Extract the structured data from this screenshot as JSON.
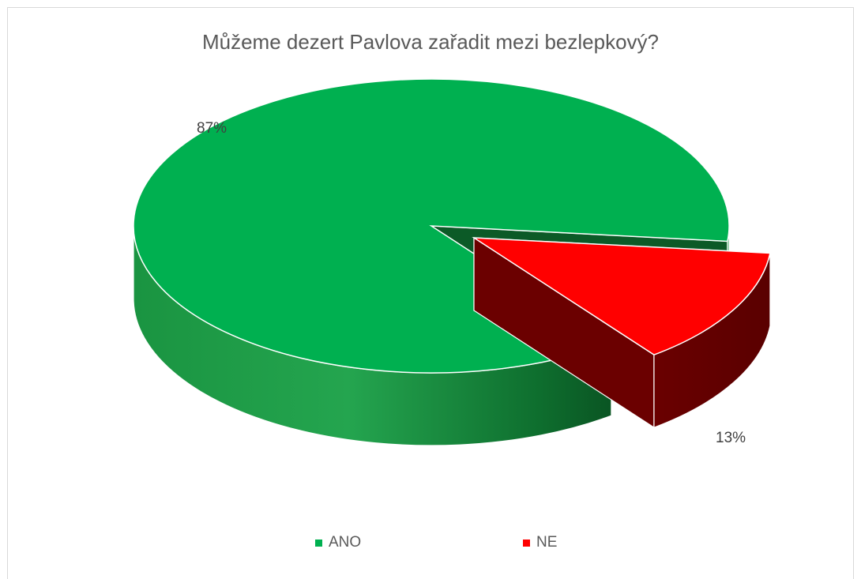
{
  "chart_data": {
    "type": "pie",
    "title": "Můžeme dezert Pavlova zařadit mezi bezlepkový?",
    "categories": [
      "ANO",
      "NE"
    ],
    "values": [
      87,
      13
    ],
    "labels": [
      "87%",
      "13%"
    ],
    "colors": [
      "#00b050",
      "#ff0000"
    ],
    "exploded": [
      "NE"
    ],
    "legend_position": "bottom",
    "style": "3d"
  }
}
